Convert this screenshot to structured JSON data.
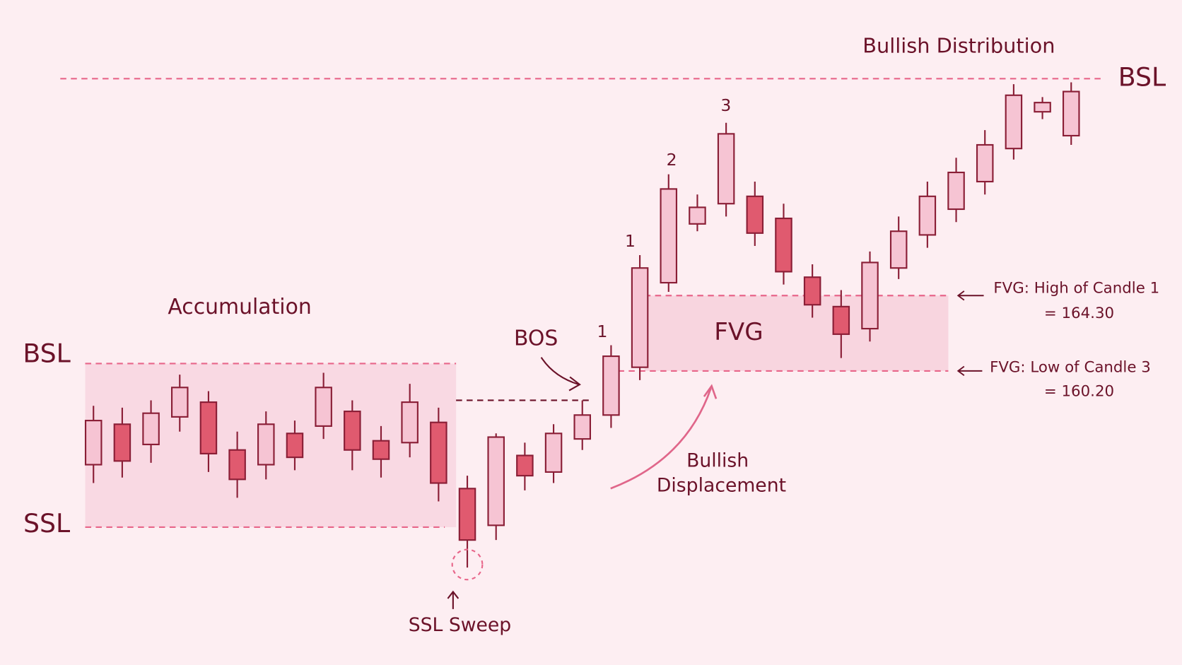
{
  "chart_data": {
    "type": "candlestick",
    "title": "Bullish Distribution",
    "colors": {
      "up": "#f6c4d3",
      "down": "#e05a6f",
      "outline": "#8a1e36",
      "level": "#e8668a",
      "zone": "#f7d2dd"
    },
    "candles": {
      "open": [
        155.1,
        157.3,
        156.2,
        157.7,
        158.5,
        155.9,
        155.1,
        156.8,
        157.2,
        158.0,
        156.4,
        156.3,
        157.4,
        153.8,
        151.8,
        155.6,
        154.7,
        156.5,
        157.8,
        160.4,
        165.0,
        168.2,
        169.3,
        169.7,
        168.5,
        165.3,
        163.7,
        162.5,
        165.8,
        167.6,
        169.0,
        170.5,
        172.3,
        174.3,
        173.0
      ],
      "high": [
        158.3,
        158.2,
        158.6,
        160.0,
        159.1,
        156.9,
        158.0,
        157.5,
        160.1,
        158.6,
        157.2,
        159.5,
        158.2,
        154.5,
        156.8,
        156.3,
        157.3,
        158.6,
        161.6,
        166.5,
        170.9,
        169.8,
        173.7,
        170.5,
        169.3,
        166.0,
        164.6,
        166.7,
        168.6,
        170.5,
        171.8,
        173.3,
        175.8,
        175.1,
        175.9
      ],
      "low": [
        154.1,
        154.4,
        155.2,
        156.9,
        154.7,
        153.3,
        154.3,
        154.8,
        156.5,
        154.8,
        154.4,
        155.5,
        153.1,
        149.5,
        151.0,
        153.7,
        154.1,
        155.9,
        157.1,
        159.7,
        164.5,
        167.8,
        168.6,
        167.0,
        164.9,
        163.1,
        160.9,
        161.8,
        165.2,
        166.9,
        168.3,
        169.8,
        171.7,
        173.9,
        172.5
      ],
      "close": [
        157.5,
        155.3,
        157.9,
        159.3,
        155.7,
        154.3,
        157.3,
        155.5,
        159.3,
        155.9,
        155.4,
        158.5,
        154.1,
        151.0,
        156.6,
        154.5,
        156.8,
        157.8,
        161.0,
        165.8,
        170.1,
        169.1,
        173.1,
        167.7,
        165.6,
        163.8,
        162.2,
        166.1,
        167.8,
        169.7,
        171.0,
        172.5,
        175.2,
        174.8,
        175.4
      ]
    },
    "levels": [
      {
        "name": "BSL",
        "value": 176.1
      },
      {
        "name": "BSL",
        "value": 160.6
      },
      {
        "name": "SSL",
        "value": 151.7
      }
    ],
    "bos": {
      "label": "BOS",
      "value": 158.6
    },
    "fvg": {
      "name": "FVG",
      "high": {
        "value": 164.3,
        "label": "= 164.30",
        "caption": "FVG: High of Candle 1"
      },
      "low": {
        "value": 160.2,
        "label": "= 160.20",
        "caption": "FVG: Low of Candle 3"
      }
    },
    "annotations": {
      "accumulation": "Accumulation",
      "displacement": [
        "Bullish",
        "Displacement"
      ],
      "sweep": "SSL Sweep",
      "candle_numbers": [
        "1",
        "1",
        "2",
        "3"
      ]
    }
  }
}
